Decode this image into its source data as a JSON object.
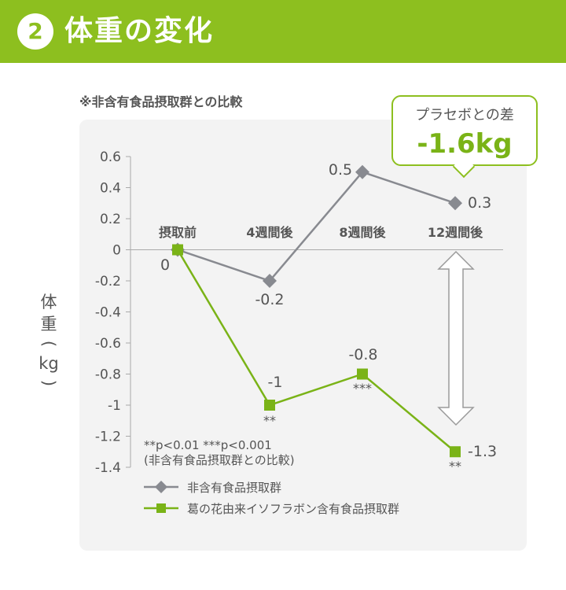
{
  "header": {
    "step_number": "2",
    "title": "体重の変化"
  },
  "note": "※非含有食品摂取群との比較",
  "callout": {
    "label": "プラセボとの差",
    "value": "-1.6kg"
  },
  "significance_note": {
    "line1": "**p<0.01 ***p<0.001",
    "line2": "(非含有食品摂取群との比較)"
  },
  "colors": {
    "brand_green": "#8dbf1f",
    "series_green": "#7ab317",
    "series_gray": "#888a90"
  },
  "chart_data": {
    "type": "line",
    "categories": [
      "摂取前",
      "4週間後",
      "8週間後",
      "12週間後"
    ],
    "ylabel": "体重(kg)",
    "ylabel_chars": [
      "体",
      "重",
      "(",
      "kg",
      ")"
    ],
    "ylim": [
      -1.4,
      0.6
    ],
    "yticks": [
      "0.6",
      "0.4",
      "0.2",
      "0",
      "-0.2",
      "-0.4",
      "-0.6",
      "-0.8",
      "-1",
      "-1.2",
      "-1.4"
    ],
    "grid": false,
    "legend_position": "bottom-left",
    "series": [
      {
        "name": "非含有食品摂取群",
        "color": "#888a90",
        "marker": "diamond",
        "values": [
          0,
          -0.2,
          0.5,
          0.3
        ],
        "labels": [
          "0",
          "-0.2",
          "0.5",
          "0.3"
        ],
        "significance": [
          "",
          "",
          "",
          ""
        ]
      },
      {
        "name": "葛の花由来イソフラボン含有食品摂取群",
        "color": "#7ab317",
        "marker": "square",
        "values": [
          0,
          -1.0,
          -0.8,
          -1.3
        ],
        "labels": [
          "",
          "-1",
          "-0.8",
          "-1.3"
        ],
        "significance": [
          "",
          "**",
          "***",
          "**"
        ]
      }
    ]
  }
}
